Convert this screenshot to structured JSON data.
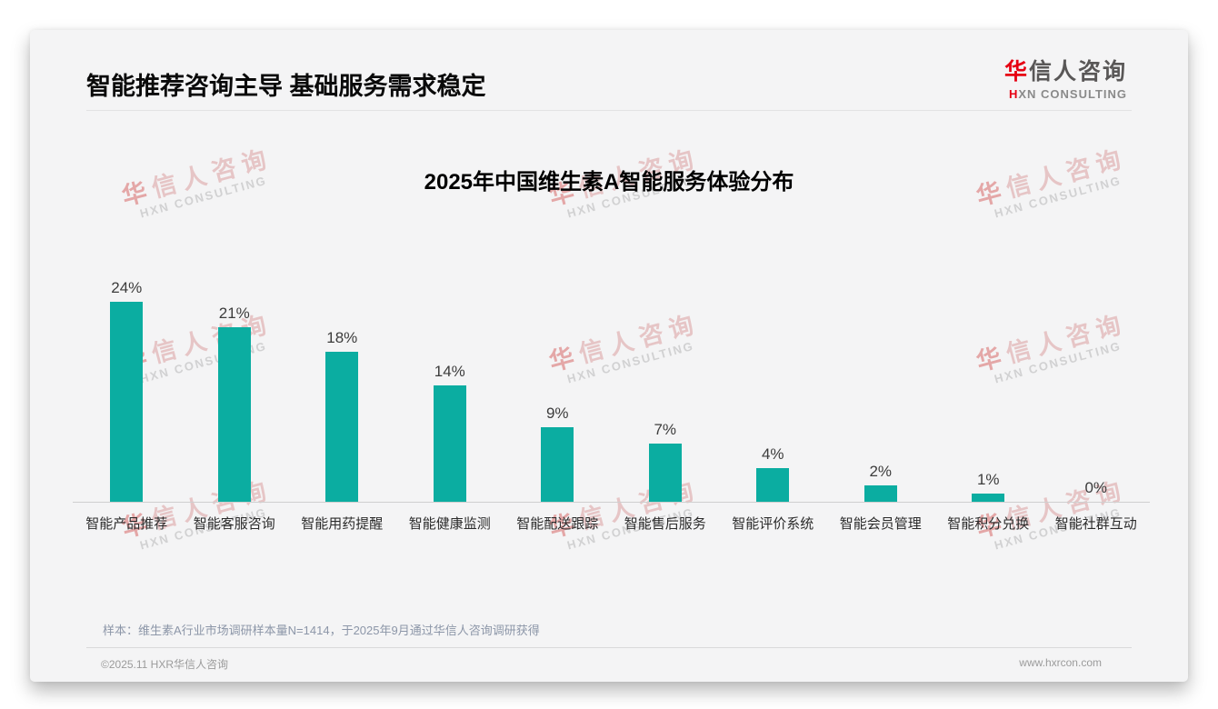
{
  "header": {
    "title": "智能推荐咨询主导 基础服务需求稳定"
  },
  "logo": {
    "zh_first": "华",
    "zh_rest": "信人咨询",
    "en_first": "H",
    "en_rest": "XN CONSULTING"
  },
  "watermark": {
    "zh_first": "华",
    "zh_rest": "信人咨询",
    "en": "HXN CONSULTING"
  },
  "chart_data": {
    "type": "bar",
    "title": "2025年中国维生素A智能服务体验分布",
    "categories": [
      "智能产品推荐",
      "智能客服咨询",
      "智能用药提醒",
      "智能健康监测",
      "智能配送跟踪",
      "智能售后服务",
      "智能评价系统",
      "智能会员管理",
      "智能积分兑换",
      "智能社群互动"
    ],
    "values": [
      24,
      21,
      18,
      14,
      9,
      7,
      4,
      2,
      1,
      0
    ],
    "unit": "%",
    "ylim": [
      0,
      24
    ],
    "xlabel": "",
    "ylabel": "",
    "grid": false,
    "legend": false,
    "bar_color": "#0bada1"
  },
  "note": {
    "text": "样本：维生素A行业市场调研样本量N=1414，于2025年9月通过华信人咨询调研获得"
  },
  "footer": {
    "left": "©2025.11 HXR华信人咨询",
    "right": "www.hxrcon.com"
  }
}
